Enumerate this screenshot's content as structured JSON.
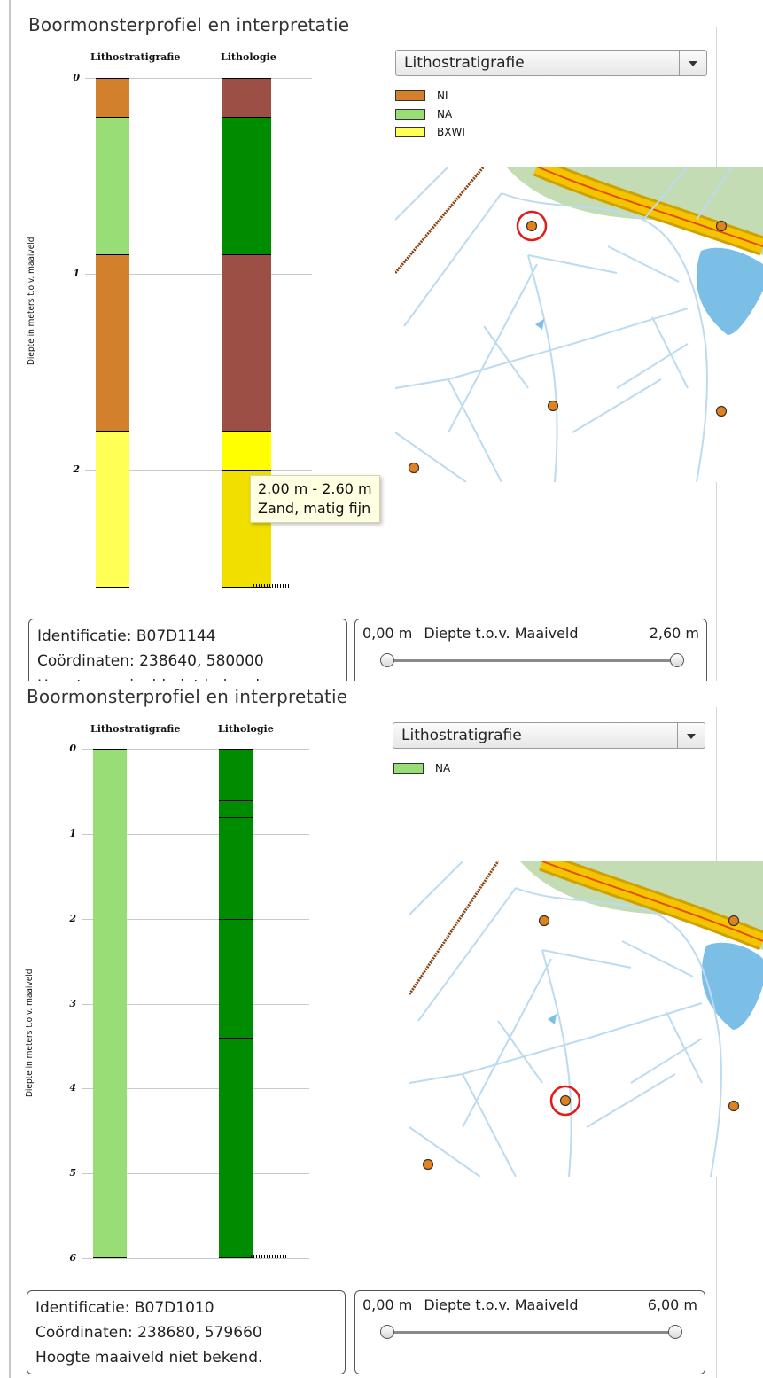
{
  "profiles": [
    {
      "title": "Boormonsterprofiel en interpretatie",
      "column_headers": {
        "litho_strat": "Lithostratigrafie",
        "lithology": "Lithologie"
      },
      "y_axis_label": "Diepte in meters t.o.v. maaiveld",
      "ticks": [
        "0",
        "1",
        "2"
      ],
      "dropdown": {
        "selected": "Lithostratigrafie"
      },
      "legend": [
        {
          "label": "NI",
          "color": "#d2802c"
        },
        {
          "label": "NA",
          "color": "#99dd77"
        },
        {
          "label": "BXWI",
          "color": "#ffff55"
        }
      ],
      "tooltip": {
        "line1": "2.00 m - 2.60 m",
        "line2": "Zand, matig fijn"
      },
      "info": {
        "identificatie": "Identificatie: B07D1144",
        "coordinaten": "Coördinaten: 238640, 580000",
        "hoogte": "Hoogte maaiveld niet bekend."
      },
      "depth": {
        "min": "0,00 m",
        "label": "Diepte t.o.v. Maaiveld",
        "max": "2,60 m"
      },
      "highlighted_point": "B07D1144"
    },
    {
      "title": "Boormonsterprofiel en interpretatie",
      "column_headers": {
        "litho_strat": "Lithostratigrafie",
        "lithology": "Lithologie"
      },
      "y_axis_label": "Diepte in meters t.o.v. maaiveld",
      "ticks": [
        "0",
        "1",
        "2",
        "3",
        "4",
        "5",
        "6"
      ],
      "dropdown": {
        "selected": "Lithostratigrafie"
      },
      "legend": [
        {
          "label": "NA",
          "color": "#99dd77"
        }
      ],
      "info": {
        "identificatie": "Identificatie: B07D1010",
        "coordinaten": "Coördinaten: 238680, 579660",
        "hoogte": "Hoogte maaiveld niet bekend."
      },
      "depth": {
        "min": "0,00 m",
        "label": "Diepte t.o.v. Maaiveld",
        "max": "6,00 m"
      },
      "highlighted_point": "B07D1010"
    }
  ],
  "colors": {
    "NI": "#d2802c",
    "NA": "#99dd77",
    "BXWI": "#ffff55",
    "lith_brown": "#9b4f45",
    "lith_green": "#008c00",
    "lith_yellow_light": "#ffff00",
    "lith_yellow": "#f1df00",
    "map_water": "#7cbfe6",
    "map_road": "#f5c400",
    "map_green": "#c4dcb4",
    "map_ditch": "#bcdaf0",
    "borehole": "#e2821c",
    "highlight": "#e21a1a"
  },
  "chart_data": [
    {
      "type": "strip-log",
      "title": "Boormonsterprofiel en interpretatie",
      "ylabel": "Diepte in meters t.o.v. maaiveld",
      "ylim": [
        0,
        2.6
      ],
      "columns": [
        {
          "name": "Lithostratigrafie",
          "intervals": [
            {
              "from": 0.0,
              "to": 0.2,
              "unit": "NI"
            },
            {
              "from": 0.2,
              "to": 0.9,
              "unit": "NA"
            },
            {
              "from": 0.9,
              "to": 1.8,
              "unit": "NI"
            },
            {
              "from": 1.8,
              "to": 2.6,
              "unit": "BXWI"
            }
          ]
        },
        {
          "name": "Lithologie",
          "intervals": [
            {
              "from": 0.0,
              "to": 0.2,
              "class": "lith_brown"
            },
            {
              "from": 0.2,
              "to": 0.9,
              "class": "lith_green"
            },
            {
              "from": 0.9,
              "to": 1.8,
              "class": "lith_brown"
            },
            {
              "from": 1.8,
              "to": 2.0,
              "class": "lith_yellow_light"
            },
            {
              "from": 2.0,
              "to": 2.6,
              "class": "lith_yellow",
              "description": "Zand, matig fijn"
            }
          ]
        }
      ]
    },
    {
      "type": "strip-log",
      "title": "Boormonsterprofiel en interpretatie",
      "ylabel": "Diepte in meters t.o.v. maaiveld",
      "ylim": [
        0,
        6
      ],
      "columns": [
        {
          "name": "Lithostratigrafie",
          "intervals": [
            {
              "from": 0.0,
              "to": 6.0,
              "unit": "NA"
            }
          ]
        },
        {
          "name": "Lithologie",
          "intervals": [
            {
              "from": 0.0,
              "to": 0.3,
              "class": "lith_green"
            },
            {
              "from": 0.3,
              "to": 0.6,
              "class": "lith_green"
            },
            {
              "from": 0.6,
              "to": 0.8,
              "class": "lith_green"
            },
            {
              "from": 0.8,
              "to": 2.0,
              "class": "lith_green"
            },
            {
              "from": 2.0,
              "to": 3.4,
              "class": "lith_green"
            },
            {
              "from": 3.4,
              "to": 6.0,
              "class": "lith_green"
            }
          ]
        }
      ]
    }
  ]
}
